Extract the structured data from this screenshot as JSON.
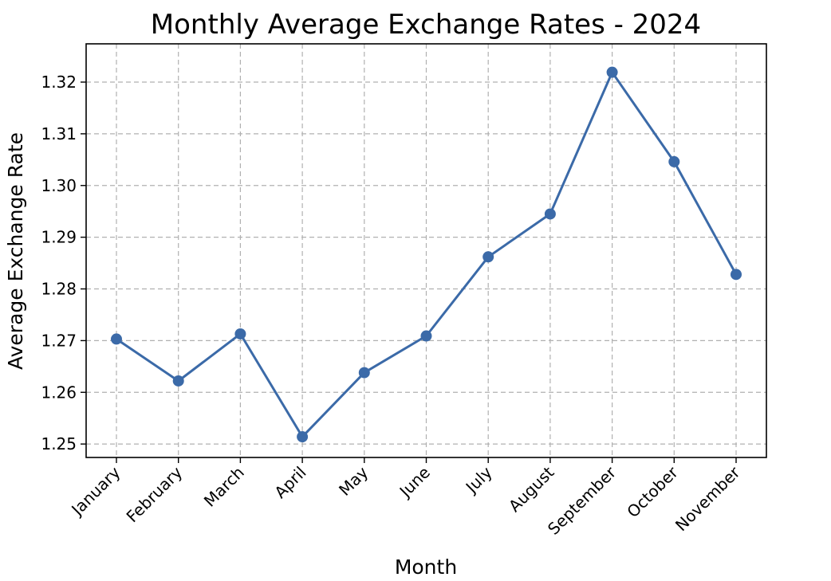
{
  "chart_data": {
    "type": "line",
    "title": "Monthly Average Exchange Rates - 2024",
    "xlabel": "Month",
    "ylabel": "Average Exchange Rate",
    "categories": [
      "January",
      "February",
      "March",
      "April",
      "May",
      "June",
      "July",
      "August",
      "September",
      "October",
      "November"
    ],
    "series": [
      {
        "values": [
          1.2703,
          1.2622,
          1.2713,
          1.2514,
          1.2638,
          1.2709,
          1.2862,
          1.2945,
          1.3219,
          1.3046,
          1.2828
        ],
        "color": "#3b6aa8"
      }
    ],
    "ylim": [
      1.2474,
      1.3274
    ],
    "yticks": [
      "1.25",
      "1.26",
      "1.27",
      "1.28",
      "1.29",
      "1.30",
      "1.31",
      "1.32"
    ],
    "grid": true,
    "marker": "circle",
    "legend": false
  }
}
